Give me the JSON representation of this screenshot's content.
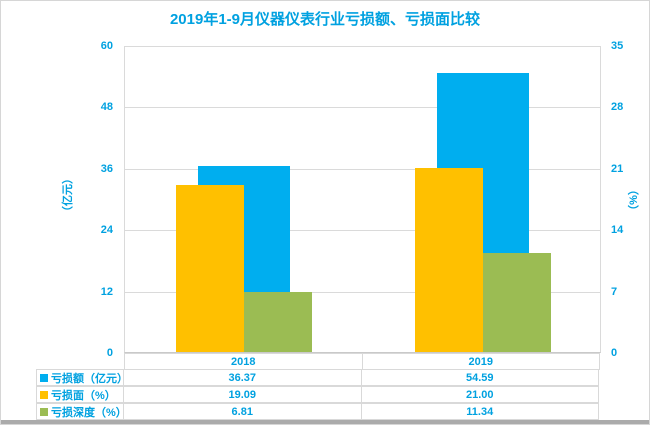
{
  "chart_data": {
    "type": "bar",
    "title": "2019年1-9月仪器仪表行业亏损额、亏损面比较",
    "categories": [
      "2018",
      "2019"
    ],
    "series": [
      {
        "name": "亏损额（亿元）",
        "axis": "left",
        "color": "#00aeef",
        "values": [
          36.37,
          54.59
        ],
        "display": [
          "36.37",
          "54.59"
        ]
      },
      {
        "name": "亏损面（%）",
        "axis": "right",
        "color": "#ffc000",
        "values": [
          19.09,
          21.0
        ],
        "display": [
          "19.09",
          "21.00"
        ]
      },
      {
        "name": "亏损深度（%）",
        "axis": "right",
        "color": "#9bbc53",
        "values": [
          6.81,
          11.34
        ],
        "display": [
          "6.81",
          "11.34"
        ]
      }
    ],
    "left_axis": {
      "label": "（亿元）",
      "min": 0,
      "max": 60,
      "ticks": [
        60,
        48,
        36,
        24,
        12,
        0
      ]
    },
    "right_axis": {
      "label": "（%）",
      "min": 0,
      "max": 35,
      "ticks": [
        35,
        28,
        21,
        14,
        7,
        0
      ]
    },
    "grid": true,
    "legend_position": "table-bottom",
    "colors": {
      "title_text": "#00a1e0",
      "axis_text": "#00a1e0",
      "gridline": "#dadada",
      "table_border": "#d9d9d9"
    }
  }
}
